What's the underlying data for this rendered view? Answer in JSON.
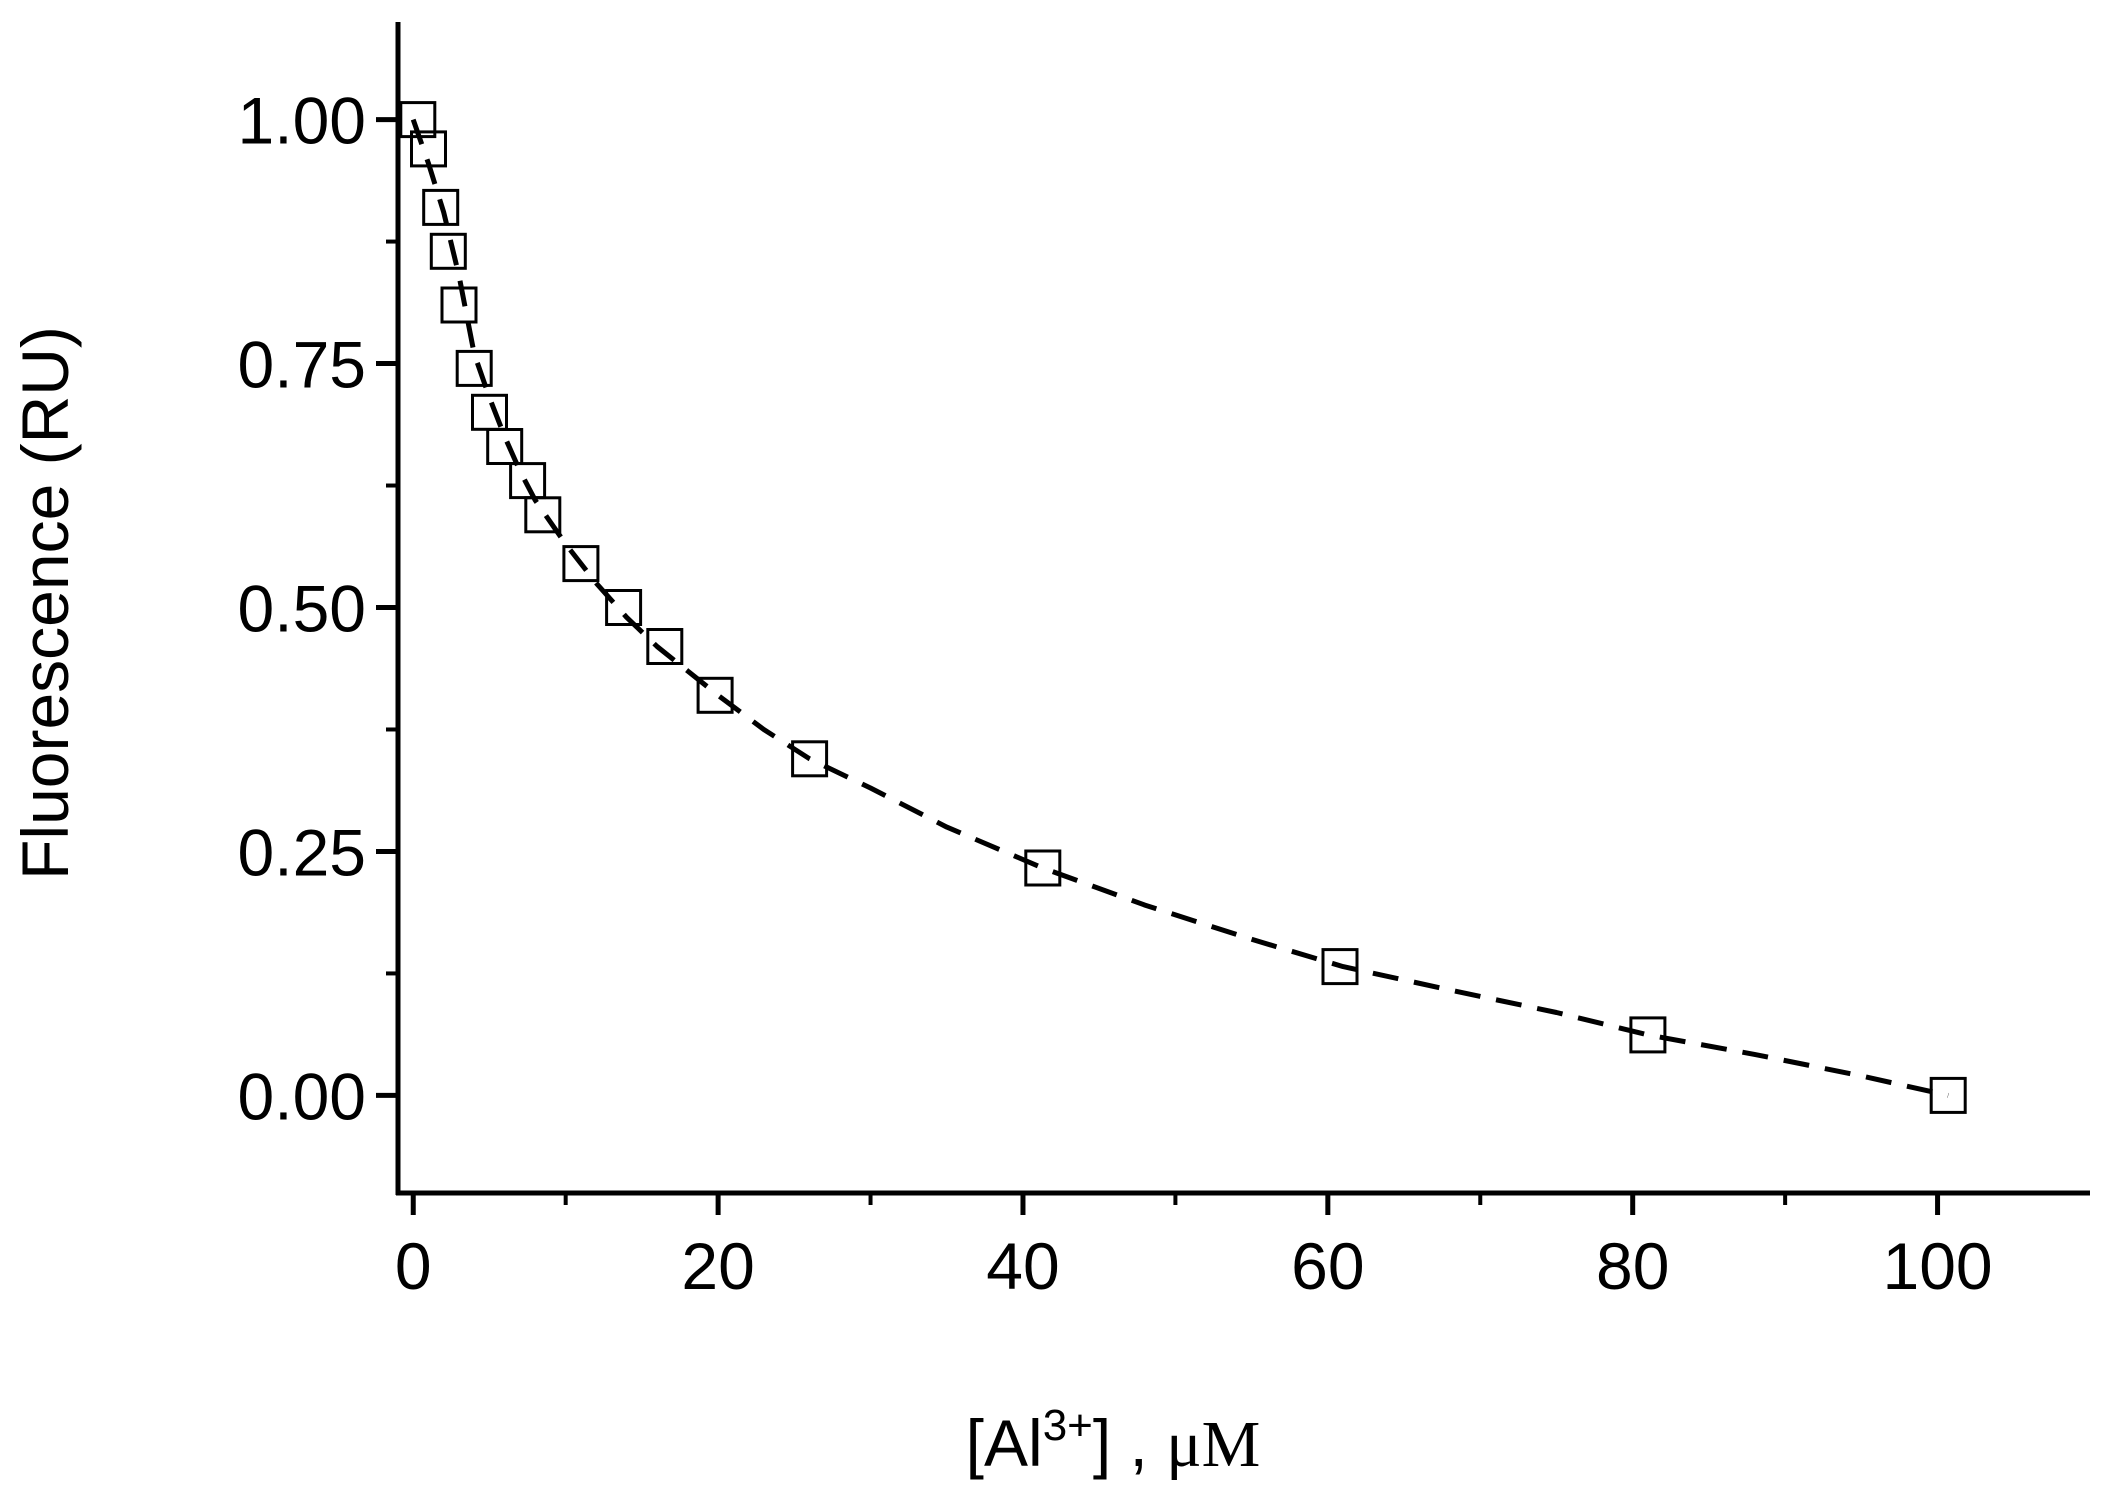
{
  "chart_data": {
    "type": "scatter",
    "title": "",
    "xlabel": {
      "main": "[Al",
      "sup": "3+",
      "tail": "] , ",
      "unit": "μM"
    },
    "ylabel": "Fluorescence (RU)",
    "xlim": [
      -1,
      110
    ],
    "ylim": [
      -0.1,
      1.1
    ],
    "x_ticks": [
      0,
      20,
      40,
      60,
      80,
      100
    ],
    "x_tick_labels": [
      "0",
      "20",
      "40",
      "60",
      "80",
      "100"
    ],
    "y_ticks": [
      0.0,
      0.25,
      0.5,
      0.75,
      1.0
    ],
    "y_tick_labels": [
      "0.00",
      "0.25",
      "0.50",
      "0.75",
      "1.00"
    ],
    "x_minor_step": 10,
    "y_minor_step": 0.125,
    "grid": false,
    "legend": "none",
    "marker": "open-square",
    "fit_style": "dashed",
    "colors": {
      "marker_stroke": "#000000",
      "fit_line": "#000000",
      "axis": "#000000"
    },
    "series": [
      {
        "x": [
          0.3,
          1.0,
          1.8,
          2.3,
          3.0,
          4.0,
          5.0,
          6.0,
          7.5,
          8.5,
          11.0,
          13.8,
          16.5,
          19.8,
          26.0,
          41.3,
          60.8,
          81.0,
          100.7
        ],
        "y": [
          1.0,
          0.97,
          0.91,
          0.865,
          0.81,
          0.745,
          0.7,
          0.665,
          0.63,
          0.595,
          0.545,
          0.5,
          0.46,
          0.41,
          0.345,
          0.233,
          0.132,
          0.062,
          0.0
        ]
      }
    ],
    "fit_line": {
      "x": [
        0,
        1,
        2,
        3,
        4,
        5,
        6,
        7,
        8,
        10,
        12,
        14,
        16,
        18,
        20,
        23,
        26,
        30,
        35,
        41.3,
        48,
        55,
        61,
        68,
        75,
        81,
        88,
        95,
        100.7
      ],
      "y": [
        1.0,
        0.955,
        0.905,
        0.84,
        0.76,
        0.715,
        0.675,
        0.64,
        0.61,
        0.565,
        0.525,
        0.49,
        0.46,
        0.435,
        0.41,
        0.375,
        0.345,
        0.315,
        0.275,
        0.233,
        0.195,
        0.16,
        0.132,
        0.108,
        0.085,
        0.062,
        0.042,
        0.02,
        0.0
      ]
    }
  }
}
